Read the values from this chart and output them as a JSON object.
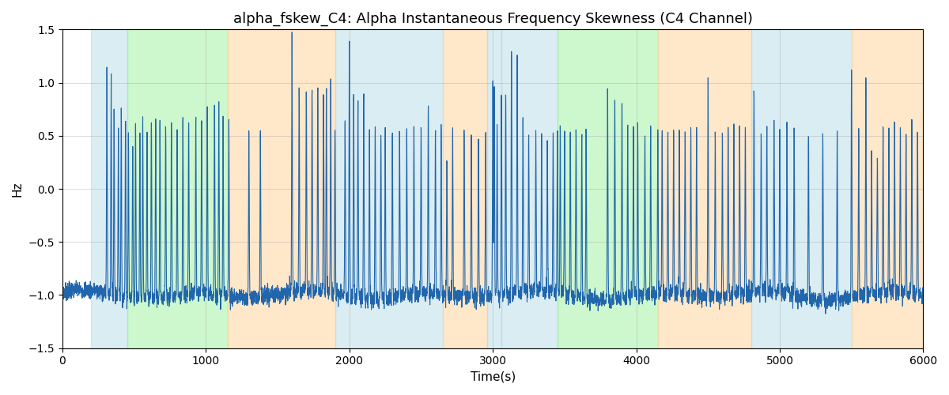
{
  "title": "alpha_fskew_C4: Alpha Instantaneous Frequency Skewness (C4 Channel)",
  "xlabel": "Time(s)",
  "ylabel": "Hz",
  "xlim": [
    0,
    6000
  ],
  "ylim": [
    -1.5,
    1.5
  ],
  "yticks": [
    -1.5,
    -1.0,
    -0.5,
    0.0,
    0.5,
    1.0,
    1.5
  ],
  "xticks": [
    0,
    1000,
    2000,
    3000,
    4000,
    5000,
    6000
  ],
  "background_regions": [
    {
      "xmin": 200,
      "xmax": 450,
      "color": "#add8e6",
      "alpha": 0.45
    },
    {
      "xmin": 450,
      "xmax": 1150,
      "color": "#90ee90",
      "alpha": 0.45
    },
    {
      "xmin": 1150,
      "xmax": 1900,
      "color": "#ffd59e",
      "alpha": 0.55
    },
    {
      "xmin": 1900,
      "xmax": 2650,
      "color": "#add8e6",
      "alpha": 0.45
    },
    {
      "xmin": 2650,
      "xmax": 2960,
      "color": "#ffd59e",
      "alpha": 0.55
    },
    {
      "xmin": 2960,
      "xmax": 3060,
      "color": "#add8e6",
      "alpha": 0.45
    },
    {
      "xmin": 3060,
      "xmax": 3450,
      "color": "#add8e6",
      "alpha": 0.45
    },
    {
      "xmin": 3450,
      "xmax": 4150,
      "color": "#90ee90",
      "alpha": 0.45
    },
    {
      "xmin": 4150,
      "xmax": 4800,
      "color": "#ffd59e",
      "alpha": 0.55
    },
    {
      "xmin": 4800,
      "xmax": 5500,
      "color": "#add8e6",
      "alpha": 0.45
    },
    {
      "xmin": 5500,
      "xmax": 6000,
      "color": "#ffd59e",
      "alpha": 0.55
    }
  ],
  "line_color": "#2166ac",
  "line_width": 0.8,
  "grid_color": "#aaaaaa",
  "grid_alpha": 0.5,
  "title_fontsize": 13,
  "label_fontsize": 11,
  "spikes": [
    [
      310,
      1.15
    ],
    [
      340,
      1.0
    ],
    [
      360,
      0.72
    ],
    [
      390,
      0.57
    ],
    [
      410,
      0.73
    ],
    [
      440,
      0.67
    ],
    [
      460,
      0.55
    ],
    [
      490,
      0.45
    ],
    [
      510,
      0.68
    ],
    [
      540,
      0.58
    ],
    [
      560,
      0.67
    ],
    [
      590,
      0.57
    ],
    [
      620,
      0.66
    ],
    [
      650,
      0.69
    ],
    [
      680,
      0.7
    ],
    [
      720,
      0.65
    ],
    [
      760,
      0.66
    ],
    [
      800,
      0.56
    ],
    [
      840,
      0.65
    ],
    [
      880,
      0.64
    ],
    [
      930,
      0.66
    ],
    [
      970,
      0.65
    ],
    [
      1010,
      0.8
    ],
    [
      1060,
      0.8
    ],
    [
      1090,
      0.79
    ],
    [
      1120,
      0.66
    ],
    [
      1160,
      0.65
    ],
    [
      1300,
      0.57
    ],
    [
      1380,
      0.6
    ],
    [
      1600,
      1.45
    ],
    [
      1650,
      0.95
    ],
    [
      1700,
      0.9
    ],
    [
      1740,
      0.92
    ],
    [
      1780,
      0.91
    ],
    [
      1820,
      0.92
    ],
    [
      1840,
      0.93
    ],
    [
      1870,
      0.95
    ],
    [
      1900,
      0.58
    ],
    [
      1970,
      0.6
    ],
    [
      2000,
      1.43
    ],
    [
      2030,
      0.92
    ],
    [
      2060,
      0.9
    ],
    [
      2100,
      0.9
    ],
    [
      2140,
      0.57
    ],
    [
      2180,
      0.6
    ],
    [
      2220,
      0.58
    ],
    [
      2250,
      0.6
    ],
    [
      2300,
      0.57
    ],
    [
      2350,
      0.6
    ],
    [
      2400,
      0.58
    ],
    [
      2450,
      0.57
    ],
    [
      2500,
      0.58
    ],
    [
      2550,
      0.75
    ],
    [
      2600,
      0.56
    ],
    [
      2640,
      0.57
    ],
    [
      2680,
      0.3
    ],
    [
      2720,
      0.57
    ],
    [
      2800,
      0.57
    ],
    [
      2850,
      0.57
    ],
    [
      2900,
      0.57
    ],
    [
      2950,
      0.57
    ],
    [
      3000,
      1.0
    ],
    [
      3010,
      0.96
    ],
    [
      3030,
      0.57
    ],
    [
      3060,
      0.92
    ],
    [
      3090,
      0.88
    ],
    [
      3130,
      1.33
    ],
    [
      3170,
      1.31
    ],
    [
      3210,
      0.68
    ],
    [
      3250,
      0.45
    ],
    [
      3300,
      0.45
    ],
    [
      3340,
      0.45
    ],
    [
      3380,
      0.47
    ],
    [
      3420,
      0.47
    ],
    [
      3450,
      0.57
    ],
    [
      3470,
      0.58
    ],
    [
      3500,
      0.56
    ],
    [
      3540,
      0.57
    ],
    [
      3580,
      0.57
    ],
    [
      3620,
      0.57
    ],
    [
      3650,
      0.55
    ],
    [
      3800,
      0.94
    ],
    [
      3850,
      0.9
    ],
    [
      3900,
      0.92
    ],
    [
      3940,
      0.57
    ],
    [
      3980,
      0.57
    ],
    [
      4010,
      0.57
    ],
    [
      4060,
      0.57
    ],
    [
      4100,
      0.6
    ],
    [
      4150,
      0.57
    ],
    [
      4180,
      0.57
    ],
    [
      4220,
      0.57
    ],
    [
      4260,
      0.58
    ],
    [
      4300,
      0.57
    ],
    [
      4340,
      0.57
    ],
    [
      4380,
      0.6
    ],
    [
      4420,
      0.57
    ],
    [
      4500,
      1.1
    ],
    [
      4550,
      0.57
    ],
    [
      4600,
      0.57
    ],
    [
      4640,
      0.6
    ],
    [
      4680,
      0.57
    ],
    [
      4720,
      0.57
    ],
    [
      4760,
      0.57
    ],
    [
      4820,
      0.88
    ],
    [
      4870,
      0.57
    ],
    [
      4910,
      0.57
    ],
    [
      4960,
      0.57
    ],
    [
      5000,
      0.57
    ],
    [
      5050,
      0.57
    ],
    [
      5100,
      0.57
    ],
    [
      5200,
      0.57
    ],
    [
      5300,
      0.57
    ],
    [
      5400,
      0.57
    ],
    [
      5500,
      1.17
    ],
    [
      5550,
      0.57
    ],
    [
      5600,
      1.05
    ],
    [
      5640,
      0.31
    ],
    [
      5680,
      0.3
    ],
    [
      5720,
      0.55
    ],
    [
      5760,
      0.55
    ],
    [
      5800,
      0.55
    ],
    [
      5840,
      0.56
    ],
    [
      5880,
      0.56
    ],
    [
      5920,
      0.55
    ],
    [
      5960,
      0.55
    ]
  ]
}
